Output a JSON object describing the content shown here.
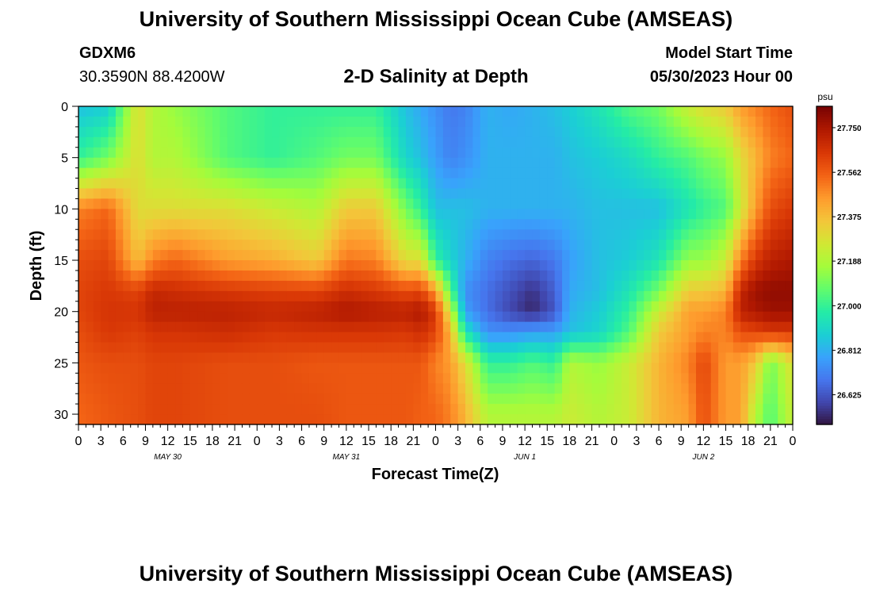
{
  "header": {
    "title": "University of Southern Mississippi Ocean Cube (AMSEAS)",
    "station": "GDXM6",
    "coords": "30.3590N  88.4200W",
    "subtitle": "2-D Salinity at Depth",
    "start_label": "Model Start Time",
    "start_value": "05/30/2023 Hour 00",
    "bottom_title": "University of Southern Mississippi Ocean Cube (AMSEAS)"
  },
  "chart_data": {
    "type": "heatmap",
    "title": "2-D Salinity at Depth",
    "xlabel": "Forecast Time(Z)",
    "ylabel": "Depth (ft)",
    "x_range_hours": [
      0,
      96
    ],
    "x_ticks": [
      {
        "h": 0,
        "label": "0"
      },
      {
        "h": 3,
        "label": "3"
      },
      {
        "h": 6,
        "label": "6"
      },
      {
        "h": 9,
        "label": "9"
      },
      {
        "h": 12,
        "label": "12"
      },
      {
        "h": 15,
        "label": "15"
      },
      {
        "h": 18,
        "label": "18"
      },
      {
        "h": 21,
        "label": "21"
      },
      {
        "h": 24,
        "label": "0"
      },
      {
        "h": 27,
        "label": "3"
      },
      {
        "h": 30,
        "label": "6"
      },
      {
        "h": 33,
        "label": "9"
      },
      {
        "h": 36,
        "label": "12"
      },
      {
        "h": 39,
        "label": "15"
      },
      {
        "h": 42,
        "label": "18"
      },
      {
        "h": 45,
        "label": "21"
      },
      {
        "h": 48,
        "label": "0"
      },
      {
        "h": 51,
        "label": "3"
      },
      {
        "h": 54,
        "label": "6"
      },
      {
        "h": 57,
        "label": "9"
      },
      {
        "h": 60,
        "label": "12"
      },
      {
        "h": 63,
        "label": "15"
      },
      {
        "h": 66,
        "label": "18"
      },
      {
        "h": 69,
        "label": "21"
      },
      {
        "h": 72,
        "label": "0"
      },
      {
        "h": 75,
        "label": "3"
      },
      {
        "h": 78,
        "label": "6"
      },
      {
        "h": 81,
        "label": "9"
      },
      {
        "h": 84,
        "label": "12"
      },
      {
        "h": 87,
        "label": "15"
      },
      {
        "h": 90,
        "label": "18"
      },
      {
        "h": 93,
        "label": "21"
      },
      {
        "h": 96,
        "label": "0"
      }
    ],
    "date_labels": [
      {
        "h": 12,
        "label": "MAY 30"
      },
      {
        "h": 36,
        "label": "MAY 31"
      },
      {
        "h": 60,
        "label": "JUN 1"
      },
      {
        "h": 84,
        "label": "JUN 2"
      }
    ],
    "y_range_ft": [
      0,
      31
    ],
    "y_ticks": [
      0,
      5,
      10,
      15,
      20,
      25,
      30
    ],
    "colorbar": {
      "unit": "psu",
      "min": 26.5,
      "max": 27.84,
      "ticks": [
        "27.750",
        "27.562",
        "27.375",
        "27.188",
        "27.000",
        "26.812",
        "26.625"
      ]
    },
    "depths_ft": [
      0,
      5,
      10,
      15,
      18,
      20,
      22,
      25,
      30
    ],
    "salinity_profiles": [
      {
        "h": 0,
        "values": [
          26.85,
          27.0,
          27.5,
          27.6,
          27.62,
          27.62,
          27.6,
          27.58,
          27.55
        ]
      },
      {
        "h": 4,
        "values": [
          26.88,
          27.1,
          27.55,
          27.62,
          27.65,
          27.66,
          27.65,
          27.6,
          27.58
        ]
      },
      {
        "h": 8,
        "values": [
          27.3,
          27.3,
          27.3,
          27.38,
          27.62,
          27.66,
          27.63,
          27.6,
          27.6
        ]
      },
      {
        "h": 10,
        "values": [
          27.2,
          27.2,
          27.3,
          27.5,
          27.7,
          27.72,
          27.66,
          27.62,
          27.62
        ]
      },
      {
        "h": 13,
        "values": [
          27.15,
          27.2,
          27.3,
          27.55,
          27.68,
          27.72,
          27.66,
          27.62,
          27.62
        ]
      },
      {
        "h": 20,
        "values": [
          27.05,
          27.05,
          27.3,
          27.45,
          27.65,
          27.72,
          27.68,
          27.6,
          27.6
        ]
      },
      {
        "h": 26,
        "values": [
          27.0,
          27.0,
          27.25,
          27.42,
          27.63,
          27.7,
          27.65,
          27.6,
          27.6
        ]
      },
      {
        "h": 32,
        "values": [
          27.0,
          27.05,
          27.2,
          27.35,
          27.62,
          27.72,
          27.66,
          27.58,
          27.6
        ]
      },
      {
        "h": 36,
        "values": [
          27.0,
          27.1,
          27.35,
          27.52,
          27.68,
          27.75,
          27.66,
          27.58,
          27.58
        ]
      },
      {
        "h": 40,
        "values": [
          27.0,
          27.1,
          27.35,
          27.5,
          27.65,
          27.73,
          27.66,
          27.58,
          27.58
        ]
      },
      {
        "h": 44,
        "values": [
          26.85,
          26.9,
          27.1,
          27.3,
          27.6,
          27.72,
          27.65,
          27.58,
          27.58
        ]
      },
      {
        "h": 46,
        "values": [
          26.8,
          26.85,
          27.0,
          27.3,
          27.62,
          27.75,
          27.68,
          27.58,
          27.56
        ]
      },
      {
        "h": 48,
        "values": [
          26.75,
          26.78,
          26.85,
          27.0,
          27.45,
          27.65,
          27.62,
          27.5,
          27.55
        ]
      },
      {
        "h": 50,
        "values": [
          26.7,
          26.72,
          26.85,
          26.9,
          27.05,
          27.25,
          27.4,
          27.45,
          27.5
        ]
      },
      {
        "h": 52,
        "values": [
          26.72,
          26.75,
          26.85,
          26.82,
          26.75,
          26.78,
          26.95,
          27.3,
          27.4
        ]
      },
      {
        "h": 55,
        "values": [
          26.82,
          26.82,
          26.82,
          26.72,
          26.68,
          26.68,
          26.75,
          27.0,
          27.2
        ]
      },
      {
        "h": 58,
        "values": [
          26.8,
          26.82,
          26.82,
          26.68,
          26.62,
          26.6,
          26.75,
          27.0,
          27.2
        ]
      },
      {
        "h": 61,
        "values": [
          26.82,
          26.82,
          26.82,
          26.66,
          26.56,
          26.54,
          26.78,
          27.05,
          27.2
        ]
      },
      {
        "h": 64,
        "values": [
          26.85,
          26.82,
          26.82,
          26.7,
          26.65,
          26.63,
          26.78,
          27.0,
          27.2
        ]
      },
      {
        "h": 66,
        "values": [
          26.88,
          26.85,
          26.82,
          26.78,
          26.8,
          26.82,
          26.85,
          27.2,
          27.25
        ]
      },
      {
        "h": 70,
        "values": [
          26.95,
          26.88,
          26.85,
          26.85,
          26.85,
          26.88,
          26.9,
          27.15,
          27.2
        ]
      },
      {
        "h": 74,
        "values": [
          27.05,
          26.92,
          26.85,
          26.88,
          26.95,
          27.0,
          27.05,
          27.25,
          27.25
        ]
      },
      {
        "h": 78,
        "values": [
          27.1,
          27.0,
          26.85,
          26.95,
          27.1,
          27.25,
          27.35,
          27.4,
          27.4
        ]
      },
      {
        "h": 82,
        "values": [
          27.25,
          27.05,
          26.95,
          27.15,
          27.35,
          27.45,
          27.45,
          27.5,
          27.45
        ]
      },
      {
        "h": 84,
        "values": [
          27.3,
          27.1,
          27.0,
          27.15,
          27.35,
          27.45,
          27.5,
          27.62,
          27.6
        ]
      },
      {
        "h": 87,
        "values": [
          27.35,
          27.15,
          27.05,
          27.25,
          27.4,
          27.5,
          27.5,
          27.45,
          27.45
        ]
      },
      {
        "h": 89,
        "values": [
          27.45,
          27.3,
          27.25,
          27.5,
          27.7,
          27.72,
          27.6,
          27.45,
          27.45
        ]
      },
      {
        "h": 91,
        "values": [
          27.5,
          27.4,
          27.45,
          27.65,
          27.78,
          27.75,
          27.62,
          27.35,
          27.2
        ]
      },
      {
        "h": 93,
        "values": [
          27.55,
          27.5,
          27.6,
          27.72,
          27.8,
          27.78,
          27.65,
          27.1,
          27.05
        ]
      },
      {
        "h": 96,
        "values": [
          27.6,
          27.55,
          27.65,
          27.75,
          27.8,
          27.78,
          27.65,
          27.3,
          27.25
        ]
      }
    ],
    "colormap": [
      "#30123b",
      "#4145ab",
      "#4675ed",
      "#39a2fc",
      "#1bcfd4",
      "#24eca6",
      "#61fc6c",
      "#a4fc3b",
      "#d1e834",
      "#f3c63a",
      "#fe9b2d",
      "#f36315",
      "#d93806",
      "#b11901",
      "#7a0402"
    ]
  }
}
